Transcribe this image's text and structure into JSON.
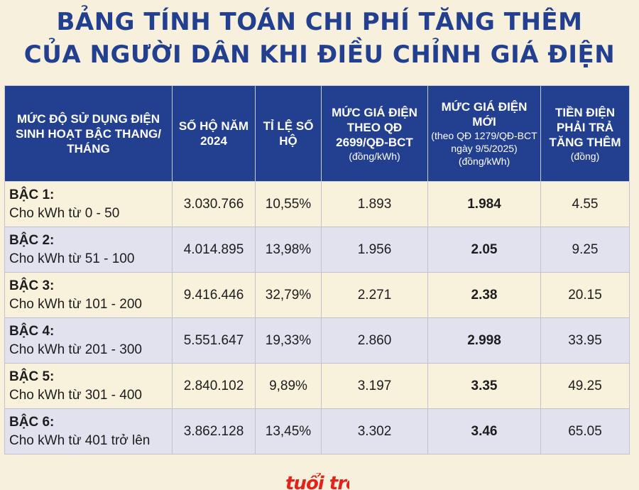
{
  "title": {
    "line1": "BẢNG TÍNH TOÁN CHI PHÍ TĂNG THÊM",
    "line2": "CỦA NGƯỜI DÂN KHI ĐIỀU CHỈNH GIÁ ĐIỆN"
  },
  "headers": {
    "col1": "MỨC ĐỘ SỬ DỤNG ĐIỆN SINH HOẠT BẬC THANG/ THÁNG",
    "col2": "SỐ HỘ NĂM 2024",
    "col3": "TỈ LỆ SỐ HỘ",
    "col4_main": "MỨC GIÁ ĐIỆN THEO QĐ 2699/QĐ-BCT",
    "col4_sub": "(đồng/kWh)",
    "col5_main": "MỨC GIÁ ĐIỆN MỚI",
    "col5_sub": "(theo QĐ 1279/QĐ-BCT ngày 9/5/2025) (đồng/kWh)",
    "col6_main": "TIỀN ĐIỆN PHẢI TRẢ TĂNG THÊM",
    "col6_sub": "(đồng)"
  },
  "rows": [
    {
      "level": "BẬC 1:",
      "range": "Cho kWh từ 0 - 50",
      "households": "3.030.766",
      "ratio": "10,55%",
      "old_price": "1.893",
      "new_price": "1.984",
      "increase": "4.55"
    },
    {
      "level": "BẬC 2:",
      "range": "Cho kWh từ 51 - 100",
      "households": "4.014.895",
      "ratio": "13,98%",
      "old_price": "1.956",
      "new_price": "2.05",
      "increase": "9.25"
    },
    {
      "level": "BẬC 3:",
      "range": "Cho kWh từ 101 - 200",
      "households": "9.416.446",
      "ratio": "32,79%",
      "old_price": "2.271",
      "new_price": "2.38",
      "increase": "20.15"
    },
    {
      "level": "BẬC 4:",
      "range": " Cho kWh từ 201 - 300",
      "households": "5.551.647",
      "ratio": "19,33%",
      "old_price": "2.860",
      "new_price": "2.998",
      "increase": "33.95"
    },
    {
      "level": "BẬC 5:",
      "range": "Cho kWh từ 301 - 400",
      "households": "2.840.102",
      "ratio": "9,89%",
      "old_price": "3.197",
      "new_price": "3.35",
      "increase": "49.25"
    },
    {
      "level": "BẬC 6:",
      "range": "Cho kWh từ 401 trở lên",
      "households": "3.862.128",
      "ratio": "13,45%",
      "old_price": "3.302",
      "new_price": "3.46",
      "increase": "65.05"
    }
  ],
  "logo": {
    "text": "tuổi trẻ"
  },
  "colors": {
    "header_bg": "#233f8f",
    "title": "#233f8f",
    "row_odd": "#f8f1dc",
    "row_even": "#e1e2ee",
    "logo": "#e2231a"
  }
}
